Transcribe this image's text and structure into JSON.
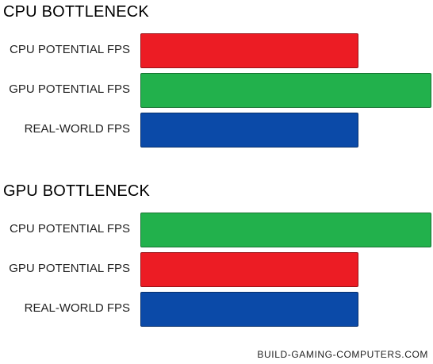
{
  "colors": {
    "red": "#ec1c24",
    "green": "#22b14c",
    "blue": "#0b4aa8"
  },
  "chart_data": [
    {
      "type": "bar",
      "orientation": "horizontal",
      "title": "CPU BOTTLENECK",
      "categories": [
        "CPU POTENTIAL FPS",
        "GPU POTENTIAL FPS",
        "REAL-WORLD FPS"
      ],
      "values": [
        75,
        100,
        75
      ],
      "bar_colors": [
        "#ec1c24",
        "#22b14c",
        "#0b4aa8"
      ],
      "xlim": [
        0,
        100
      ],
      "grid": false
    },
    {
      "type": "bar",
      "orientation": "horizontal",
      "title": "GPU BOTTLENECK",
      "categories": [
        "CPU POTENTIAL FPS",
        "GPU POTENTIAL FPS",
        "REAL-WORLD FPS"
      ],
      "values": [
        100,
        75,
        75
      ],
      "bar_colors": [
        "#22b14c",
        "#ec1c24",
        "#0b4aa8"
      ],
      "xlim": [
        0,
        100
      ],
      "grid": false
    }
  ],
  "credit": "BUILD-GAMING-COMPUTERS.COM"
}
